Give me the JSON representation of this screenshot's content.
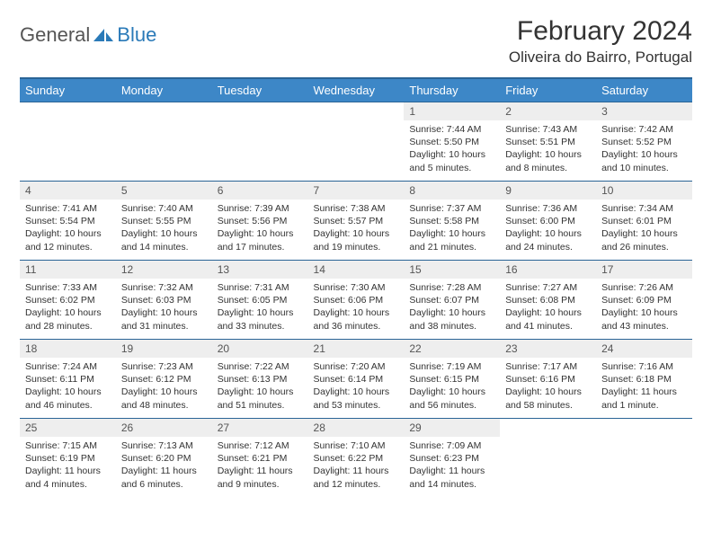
{
  "logo": {
    "general": "General",
    "blue": "Blue"
  },
  "title": "February 2024",
  "location": "Oliveira do Bairro, Portugal",
  "colors": {
    "header_bg": "#3d87c7",
    "header_border": "#2a6496",
    "daynum_bg": "#eeeeee",
    "text": "#333333",
    "logo_blue": "#2a7ab8"
  },
  "weekdays": [
    "Sunday",
    "Monday",
    "Tuesday",
    "Wednesday",
    "Thursday",
    "Friday",
    "Saturday"
  ],
  "weeks": [
    [
      null,
      null,
      null,
      null,
      {
        "n": "1",
        "sr": "Sunrise: 7:44 AM",
        "ss": "Sunset: 5:50 PM",
        "dl1": "Daylight: 10 hours",
        "dl2": "and 5 minutes."
      },
      {
        "n": "2",
        "sr": "Sunrise: 7:43 AM",
        "ss": "Sunset: 5:51 PM",
        "dl1": "Daylight: 10 hours",
        "dl2": "and 8 minutes."
      },
      {
        "n": "3",
        "sr": "Sunrise: 7:42 AM",
        "ss": "Sunset: 5:52 PM",
        "dl1": "Daylight: 10 hours",
        "dl2": "and 10 minutes."
      }
    ],
    [
      {
        "n": "4",
        "sr": "Sunrise: 7:41 AM",
        "ss": "Sunset: 5:54 PM",
        "dl1": "Daylight: 10 hours",
        "dl2": "and 12 minutes."
      },
      {
        "n": "5",
        "sr": "Sunrise: 7:40 AM",
        "ss": "Sunset: 5:55 PM",
        "dl1": "Daylight: 10 hours",
        "dl2": "and 14 minutes."
      },
      {
        "n": "6",
        "sr": "Sunrise: 7:39 AM",
        "ss": "Sunset: 5:56 PM",
        "dl1": "Daylight: 10 hours",
        "dl2": "and 17 minutes."
      },
      {
        "n": "7",
        "sr": "Sunrise: 7:38 AM",
        "ss": "Sunset: 5:57 PM",
        "dl1": "Daylight: 10 hours",
        "dl2": "and 19 minutes."
      },
      {
        "n": "8",
        "sr": "Sunrise: 7:37 AM",
        "ss": "Sunset: 5:58 PM",
        "dl1": "Daylight: 10 hours",
        "dl2": "and 21 minutes."
      },
      {
        "n": "9",
        "sr": "Sunrise: 7:36 AM",
        "ss": "Sunset: 6:00 PM",
        "dl1": "Daylight: 10 hours",
        "dl2": "and 24 minutes."
      },
      {
        "n": "10",
        "sr": "Sunrise: 7:34 AM",
        "ss": "Sunset: 6:01 PM",
        "dl1": "Daylight: 10 hours",
        "dl2": "and 26 minutes."
      }
    ],
    [
      {
        "n": "11",
        "sr": "Sunrise: 7:33 AM",
        "ss": "Sunset: 6:02 PM",
        "dl1": "Daylight: 10 hours",
        "dl2": "and 28 minutes."
      },
      {
        "n": "12",
        "sr": "Sunrise: 7:32 AM",
        "ss": "Sunset: 6:03 PM",
        "dl1": "Daylight: 10 hours",
        "dl2": "and 31 minutes."
      },
      {
        "n": "13",
        "sr": "Sunrise: 7:31 AM",
        "ss": "Sunset: 6:05 PM",
        "dl1": "Daylight: 10 hours",
        "dl2": "and 33 minutes."
      },
      {
        "n": "14",
        "sr": "Sunrise: 7:30 AM",
        "ss": "Sunset: 6:06 PM",
        "dl1": "Daylight: 10 hours",
        "dl2": "and 36 minutes."
      },
      {
        "n": "15",
        "sr": "Sunrise: 7:28 AM",
        "ss": "Sunset: 6:07 PM",
        "dl1": "Daylight: 10 hours",
        "dl2": "and 38 minutes."
      },
      {
        "n": "16",
        "sr": "Sunrise: 7:27 AM",
        "ss": "Sunset: 6:08 PM",
        "dl1": "Daylight: 10 hours",
        "dl2": "and 41 minutes."
      },
      {
        "n": "17",
        "sr": "Sunrise: 7:26 AM",
        "ss": "Sunset: 6:09 PM",
        "dl1": "Daylight: 10 hours",
        "dl2": "and 43 minutes."
      }
    ],
    [
      {
        "n": "18",
        "sr": "Sunrise: 7:24 AM",
        "ss": "Sunset: 6:11 PM",
        "dl1": "Daylight: 10 hours",
        "dl2": "and 46 minutes."
      },
      {
        "n": "19",
        "sr": "Sunrise: 7:23 AM",
        "ss": "Sunset: 6:12 PM",
        "dl1": "Daylight: 10 hours",
        "dl2": "and 48 minutes."
      },
      {
        "n": "20",
        "sr": "Sunrise: 7:22 AM",
        "ss": "Sunset: 6:13 PM",
        "dl1": "Daylight: 10 hours",
        "dl2": "and 51 minutes."
      },
      {
        "n": "21",
        "sr": "Sunrise: 7:20 AM",
        "ss": "Sunset: 6:14 PM",
        "dl1": "Daylight: 10 hours",
        "dl2": "and 53 minutes."
      },
      {
        "n": "22",
        "sr": "Sunrise: 7:19 AM",
        "ss": "Sunset: 6:15 PM",
        "dl1": "Daylight: 10 hours",
        "dl2": "and 56 minutes."
      },
      {
        "n": "23",
        "sr": "Sunrise: 7:17 AM",
        "ss": "Sunset: 6:16 PM",
        "dl1": "Daylight: 10 hours",
        "dl2": "and 58 minutes."
      },
      {
        "n": "24",
        "sr": "Sunrise: 7:16 AM",
        "ss": "Sunset: 6:18 PM",
        "dl1": "Daylight: 11 hours",
        "dl2": "and 1 minute."
      }
    ],
    [
      {
        "n": "25",
        "sr": "Sunrise: 7:15 AM",
        "ss": "Sunset: 6:19 PM",
        "dl1": "Daylight: 11 hours",
        "dl2": "and 4 minutes."
      },
      {
        "n": "26",
        "sr": "Sunrise: 7:13 AM",
        "ss": "Sunset: 6:20 PM",
        "dl1": "Daylight: 11 hours",
        "dl2": "and 6 minutes."
      },
      {
        "n": "27",
        "sr": "Sunrise: 7:12 AM",
        "ss": "Sunset: 6:21 PM",
        "dl1": "Daylight: 11 hours",
        "dl2": "and 9 minutes."
      },
      {
        "n": "28",
        "sr": "Sunrise: 7:10 AM",
        "ss": "Sunset: 6:22 PM",
        "dl1": "Daylight: 11 hours",
        "dl2": "and 12 minutes."
      },
      {
        "n": "29",
        "sr": "Sunrise: 7:09 AM",
        "ss": "Sunset: 6:23 PM",
        "dl1": "Daylight: 11 hours",
        "dl2": "and 14 minutes."
      },
      null,
      null
    ]
  ]
}
